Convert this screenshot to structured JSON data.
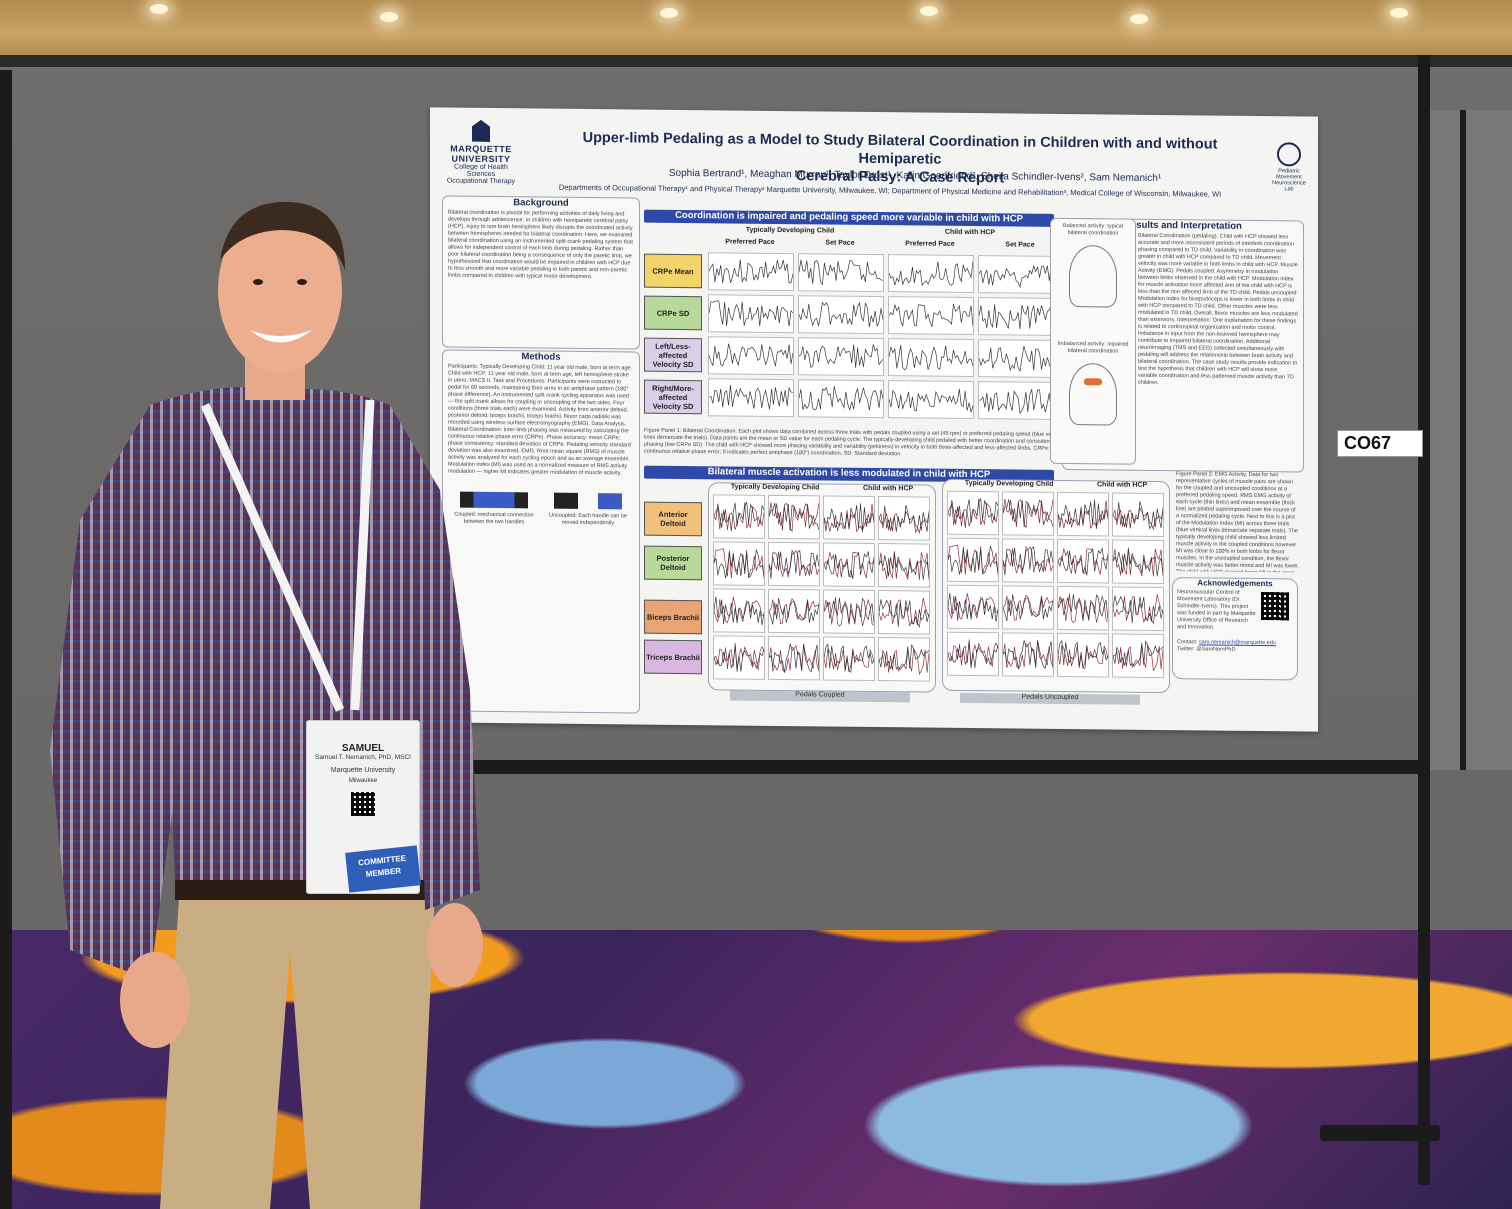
{
  "poster": {
    "university": "MARQUETTE UNIVERSITY",
    "college": "College of Health Sciences",
    "department": "Occupational Therapy",
    "title_line1": "Upper-limb Pedaling as a Model to Study Bilateral Coordination in Children with and without Hemiparetic",
    "title_line2": "Cerebral Palsy: A Case Report",
    "authors": "Sophia Bertrand¹, Meaghan Murray¹, Taylor Drost¹, Karin Goodfriend², Sheila Schindler-Ivens², Sam Nemanich¹",
    "affiliations": "Departments of Occupational Therapy¹ and Physical Therapy² Marquette University, Milwaukee, WI; Department of Physical Medicine and Rehabilitation³, Medical College of Wisconsin, Milwaukee, WI",
    "lab_logo": "Pediatric Movement Neuroscience Lab",
    "background": {
      "heading": "Background",
      "text": "Bilateral coordination is pivotal for performing activities of daily living and develops through adolescence. In children with hemiparetic cerebral palsy (HCP), injury to one brain hemisphere likely disrupts the coordinated activity between hemispheres needed for bilateral coordination. Here, we examined bilateral coordination using an instrumented split-crank pedaling system that allows for independent control of each limb during pedaling. Rather than poor bilateral coordination being a consequence of only the paretic limb, we hypothesized that coordination would be impaired in children with HCP due to less smooth and more variable pedaling in both paretic and non-paretic limbs compared to children with typical motor development."
    },
    "methods": {
      "heading": "Methods",
      "text": "Participants: Typically Developing Child: 11 year old male, born at term age. Child with HCP: 11 year old male, born at term age, left hemisphere stroke in utero, MACS II. Task and Procedures: Participants were instructed to pedal for 60 seconds, maintaining their arms in an antiphase pattern (180° phase difference). An instrumented split-crank cycling apparatus was used — the split crank allows for coupling or uncoupling of the two sides. Four conditions (three trials each) were examined. Activity from anterior deltoid, posterior deltoid, biceps brachii, triceps brachii, flexor carpi radialis was recorded using wireless surface electromyography (EMG). Data Analysis. Bilateral Coordination: Inter-limb phasing was measured by calculating the continuous relative phase error (CRPe). Phase accuracy: mean CRPe; phase consistency: standard deviation of CRPe. Pedaling velocity standard deviation was also examined. EMG: Root mean square (RMS) of muscle activity was analyzed for each cycling epoch and as an average ensemble. Modulation index (MI) was used as a normalized measure of RMS activity modulation — higher MI indicates greater modulation of muscle activity.",
      "coupled": "Coupled: mechanical connection between the two handles",
      "uncoupled": "Uncoupled: Each handle can be moved independently"
    },
    "banner1": "Coordination is impaired and pedaling speed more variable in child with HCP",
    "banner2": "Bilateral muscle activation is less modulated in child with HCP",
    "group_td": "Typically Developing Child",
    "group_hcp": "Child with HCP",
    "col_preferred": "Preferred Pace",
    "col_set": "Set Pace",
    "rows1": [
      "CRPe Mean",
      "CRPe SD",
      "Left/Less-affected Velocity SD",
      "Right/More-affected Velocity SD"
    ],
    "rows2": [
      "Anterior Deltoid",
      "Posterior Deltoid",
      "Biceps Brachii",
      "Triceps Brachii"
    ],
    "pedals_coupled": "Pedals Coupled",
    "pedals_uncoupled": "Pedals Uncoupled",
    "fig1_caption": "Figure Panel 1: Bilateral Coordination. Each plot shows data combined across three trials with pedals coupled using a set (45 rpm) or preferred pedaling speed (blue vertical lines demarcate the trials). Data points are the mean or SD value for each pedaling cycle. The typically-developing child pedaled with better coordination and consistent phasing (low CRPe SD). The child with HCP showed more phasing variability and variability (jerkiness) in velocity in both three-affected and less-affected limbs. CRPe: continuous relative phase error; 0 indicates perfect antiphase (180°) coordination, SD: Standard deviation.",
    "results": {
      "heading": "Results and Interpretation",
      "balanced": "Balanced activity: typical bilateral coordination",
      "imbalanced": "Imbalanced activity: impaired bilateral coordination",
      "text": "Bilateral Coordination (pedaling). Child with HCP showed less accurate and more inconsistent periods of interlimb coordination phasing compared to TD child. Variability in coordination was greater in child with HCP compared to TD child. Movement velocity was more variable in both limbs in child with HCP. Muscle Activity (EMG). Pedals coupled: Asymmetry in modulation between limbs observed in the child with HCP. Modulation index for muscle activation more affected arm of the child with HCP is less than the non-affected limb of the TD child. Pedals uncoupled: Modulation index for biceps/triceps is lower in both limbs in child with HCP compared to TD child. Other muscles were less modulated in TD child. Overall, flexor muscles are less modulated than extensors. Interpretation: One explanation for these findings is related to corticospinal organization and motor control. Imbalance in input from the non-lesioned hemisphere may contribute to impaired bilateral coordination. Additional neuroimaging (TMS and EEG) collected simultaneously with pedaling will address the relationship between brain activity and bilateral coordination. The case study results provide indication to test the hypothesis that children with HCP will show more variable coordination and less patterned muscle activity than TD children.",
      "fig2": "Figure Panel 2: EMG Activity. Data for two representative cycles of muscle pairs are shown for the coupled and uncoupled conditions at a preferred pedaling speed. RMS EMG activity of each cycle (thin lines) and mean ensemble (thick line) are plotted superimposed over the course of a normalized pedaling cycle. Next to this is a plot of the Modulation Index (MI) across three trials (blue vertical lines demarcate separate trials). The typically developing child showed less limited muscle activity in the coupled conditions however MI was close to 100% in both limbs for flexor muscles. In the uncoupled condition, the flexor muscle activity was better timed and MI was lower. The child with HCP showed lower MI in the more-affected limb in the coupled condition and in both limbs in the uncoupled condition."
    },
    "acknowledgements": {
      "heading": "Acknowledgements",
      "text": "Neuromuscular Control of Movement Laboratory (Dr. Schindler-Ivens). This project was funded in part by Marquette University Office of Research and Innovation.",
      "contact_label": "Contact:",
      "email": "sam.nemanich@marquette.edu",
      "twitter": "Twitter: @SamNemPhD"
    }
  },
  "booth_number": "CO67",
  "badge": {
    "first_name": "SAMUEL",
    "full_name": "Samuel T. Nemanich, PhD, MSCI",
    "org": "Marquette University",
    "city": "Milwaukee",
    "ribbon": "COMMITTEE MEMBER"
  },
  "colors": {
    "poster_banner": "#2e4aa8",
    "crpe_mean_box": "#f2d46b",
    "crpe_sd_box": "#b8d99a",
    "velocity_box": "#d9cfe8",
    "deltoid_box": "#f1c07a",
    "biceps_box": "#e8a472",
    "triceps_box": "#d8b8e0",
    "shirt": "#5a3a5a"
  }
}
